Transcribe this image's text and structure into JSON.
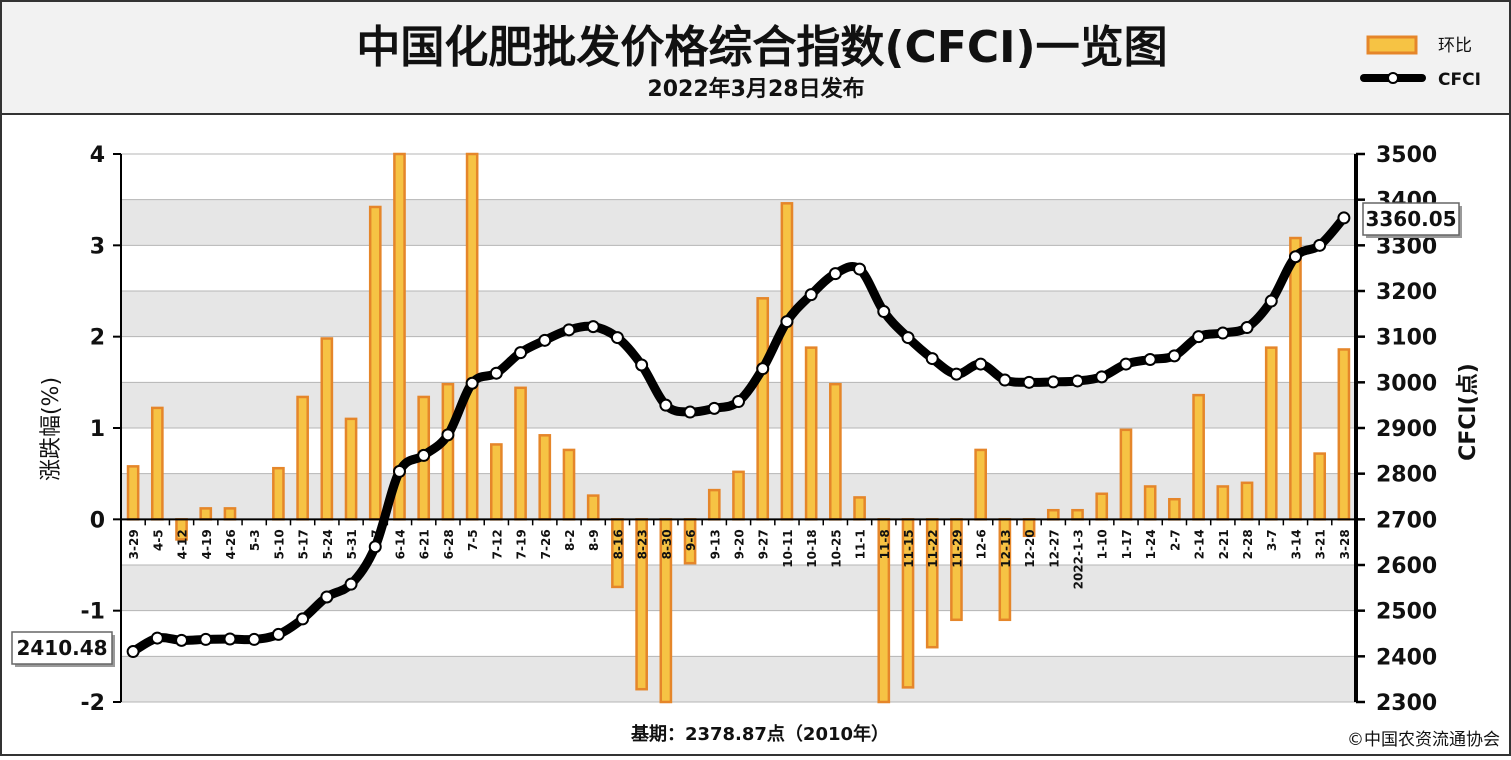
{
  "header": {
    "title": "中国化肥批发价格综合指数(CFCI)一览图",
    "subtitle": "2022年3月28日发布"
  },
  "legend": {
    "bar_label": "环比",
    "line_label": "CFCI"
  },
  "footer": {
    "base_note": "基期：2378.87点（2010年）",
    "copyright": "©中国农资流通协会"
  },
  "colors": {
    "bar_fill": "#f6c344",
    "bar_edge": "#e5862a",
    "line": "#000000",
    "plot_band": "#e6e6e6",
    "header_bg": "#f2f2f2"
  },
  "chart_data": {
    "type": "bar+line",
    "categories": [
      "3-29",
      "4-5",
      "4-12",
      "4-19",
      "4-26",
      "5-3",
      "5-10",
      "5-17",
      "5-24",
      "5-31",
      "6-7",
      "6-14",
      "6-21",
      "6-28",
      "7-5",
      "7-12",
      "7-19",
      "7-26",
      "8-2",
      "8-9",
      "8-16",
      "8-23",
      "8-30",
      "9-6",
      "9-13",
      "9-20",
      "9-27",
      "10-11",
      "10-18",
      "10-25",
      "11-1",
      "11-8",
      "11-15",
      "11-22",
      "11-29",
      "12-6",
      "12-13",
      "12-20",
      "12-27",
      "2022-1-3",
      "1-10",
      "1-17",
      "1-24",
      "2-7",
      "2-14",
      "2-21",
      "2-28",
      "3-7",
      "3-14",
      "3-21",
      "3-28"
    ],
    "series": [
      {
        "name": "环比",
        "axis": "left",
        "values": [
          0.58,
          1.22,
          -0.22,
          0.12,
          0.12,
          0.0,
          0.56,
          1.34,
          1.98,
          1.1,
          3.42,
          4.0,
          1.34,
          1.48,
          4.0,
          0.82,
          1.44,
          0.92,
          0.76,
          0.26,
          -0.74,
          -1.86,
          -2.0,
          -0.48,
          0.32,
          0.52,
          2.42,
          3.46,
          1.88,
          1.48,
          0.24,
          -2.0,
          -1.84,
          -1.4,
          -1.1,
          0.76,
          -1.1,
          -0.18,
          0.1,
          0.1,
          0.28,
          0.98,
          0.36,
          0.22,
          1.36,
          0.36,
          0.4,
          1.88,
          3.08,
          0.72,
          1.86
        ]
      },
      {
        "name": "CFCI",
        "axis": "right",
        "values": [
          2410.48,
          2440,
          2435,
          2437,
          2438,
          2437,
          2448,
          2482,
          2530,
          2558,
          2640,
          2805,
          2840,
          2885,
          2998,
          3020,
          3065,
          3092,
          3115,
          3122,
          3098,
          3038,
          2950,
          2935,
          2943,
          2958,
          3030,
          3133,
          3192,
          3238,
          3248,
          3155,
          3098,
          3052,
          3018,
          3040,
          3005,
          3000,
          3001,
          3003,
          3012,
          3040,
          3050,
          3058,
          3100,
          3108,
          3120,
          3178,
          3275,
          3300,
          3360.05
        ]
      }
    ],
    "ylim_left": [
      -2,
      4
    ],
    "ylim_right": [
      2300,
      3500
    ],
    "yticks_left": [
      -2,
      -1,
      0,
      1,
      2,
      3,
      4
    ],
    "yticks_right": [
      2300,
      2400,
      2500,
      2600,
      2700,
      2800,
      2900,
      3000,
      3100,
      3200,
      3300,
      3400,
      3500
    ],
    "ylabel_left": "涨跌幅(%)",
    "ylabel_right": "CFCI(点)",
    "annotations": {
      "first_value": "2410.48",
      "last_value": "3360.05"
    },
    "legend_position": "top-right",
    "grid": true
  }
}
